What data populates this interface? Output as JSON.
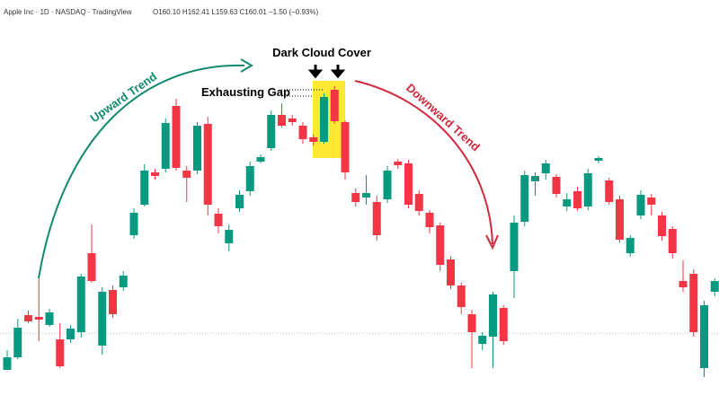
{
  "header": {
    "symbol": "Apple Inc · 1D · NASDAQ · TradingView",
    "ohlc": "O160.10 H162.41 L159.63 C160.01 −1.50 (−0.93%)"
  },
  "chart_data": {
    "type": "candlestick",
    "title": "Dark Cloud Cover",
    "annotations": [
      "Upward Trend",
      "Exhausting Gap",
      "Downward Trend"
    ],
    "up_color": "#089981",
    "down_color": "#f23645",
    "ylim": [
      0,
      450
    ],
    "ohlc": [
      [
        38,
        60,
        38,
        52
      ],
      [
        52,
        95,
        50,
        85
      ],
      [
        99,
        104,
        90,
        92
      ],
      [
        97,
        145,
        70,
        94
      ],
      [
        88,
        106,
        86,
        102
      ],
      [
        72,
        90,
        40,
        42
      ],
      [
        72,
        88,
        68,
        84
      ],
      [
        80,
        145,
        74,
        142
      ],
      [
        168,
        200,
        135,
        137
      ],
      [
        65,
        130,
        55,
        125
      ],
      [
        127,
        132,
        96,
        100
      ],
      [
        130,
        148,
        126,
        143
      ],
      [
        188,
        218,
        184,
        213
      ],
      [
        222,
        267,
        220,
        260
      ],
      [
        258,
        262,
        250,
        254
      ],
      [
        262,
        318,
        258,
        313
      ],
      [
        332,
        340,
        260,
        263
      ],
      [
        260,
        265,
        225,
        252
      ],
      [
        260,
        314,
        256,
        310
      ],
      [
        312,
        320,
        210,
        222
      ],
      [
        212,
        218,
        190,
        198
      ],
      [
        179,
        200,
        170,
        194
      ],
      [
        218,
        238,
        214,
        233
      ],
      [
        237,
        270,
        232,
        265
      ],
      [
        270,
        278,
        268,
        275
      ],
      [
        285,
        327,
        282,
        322
      ],
      [
        322,
        335,
        308,
        310
      ],
      [
        318,
        322,
        310,
        314
      ],
      [
        310,
        314,
        290,
        295
      ],
      [
        297,
        300,
        288,
        292
      ],
      [
        292,
        346,
        290,
        342
      ],
      [
        350,
        354,
        312,
        315
      ],
      [
        314,
        316,
        250,
        258
      ],
      [
        235,
        240,
        220,
        225
      ],
      [
        230,
        255,
        222,
        235
      ],
      [
        225,
        232,
        182,
        188
      ],
      [
        228,
        265,
        224,
        260
      ],
      [
        270,
        273,
        262,
        266
      ],
      [
        268,
        272,
        218,
        222
      ],
      [
        234,
        238,
        210,
        215
      ],
      [
        213,
        216,
        190,
        197
      ],
      [
        199,
        202,
        148,
        155
      ],
      [
        161,
        165,
        128,
        132
      ],
      [
        132,
        135,
        100,
        108
      ],
      [
        100,
        105,
        40,
        80
      ],
      [
        67,
        80,
        60,
        76
      ],
      [
        75,
        125,
        40,
        122
      ],
      [
        107,
        110,
        66,
        70
      ],
      [
        148,
        210,
        118,
        202
      ],
      [
        203,
        260,
        198,
        255
      ],
      [
        248,
        258,
        232,
        254
      ],
      [
        257,
        272,
        250,
        268
      ],
      [
        253,
        256,
        230,
        234
      ],
      [
        220,
        235,
        215,
        228
      ],
      [
        237,
        242,
        215,
        218
      ],
      [
        220,
        262,
        216,
        257
      ],
      [
        271,
        276,
        268,
        274
      ],
      [
        249,
        252,
        222,
        225
      ],
      [
        228,
        232,
        180,
        183
      ],
      [
        168,
        188,
        164,
        185
      ],
      [
        210,
        238,
        206,
        233
      ],
      [
        230,
        234,
        210,
        222
      ],
      [
        210,
        214,
        182,
        187
      ],
      [
        195,
        198,
        162,
        168
      ],
      [
        137,
        160,
        125,
        130
      ],
      [
        145,
        150,
        75,
        80
      ],
      [
        40,
        115,
        30,
        110
      ],
      [
        125,
        140,
        120,
        137
      ]
    ]
  }
}
